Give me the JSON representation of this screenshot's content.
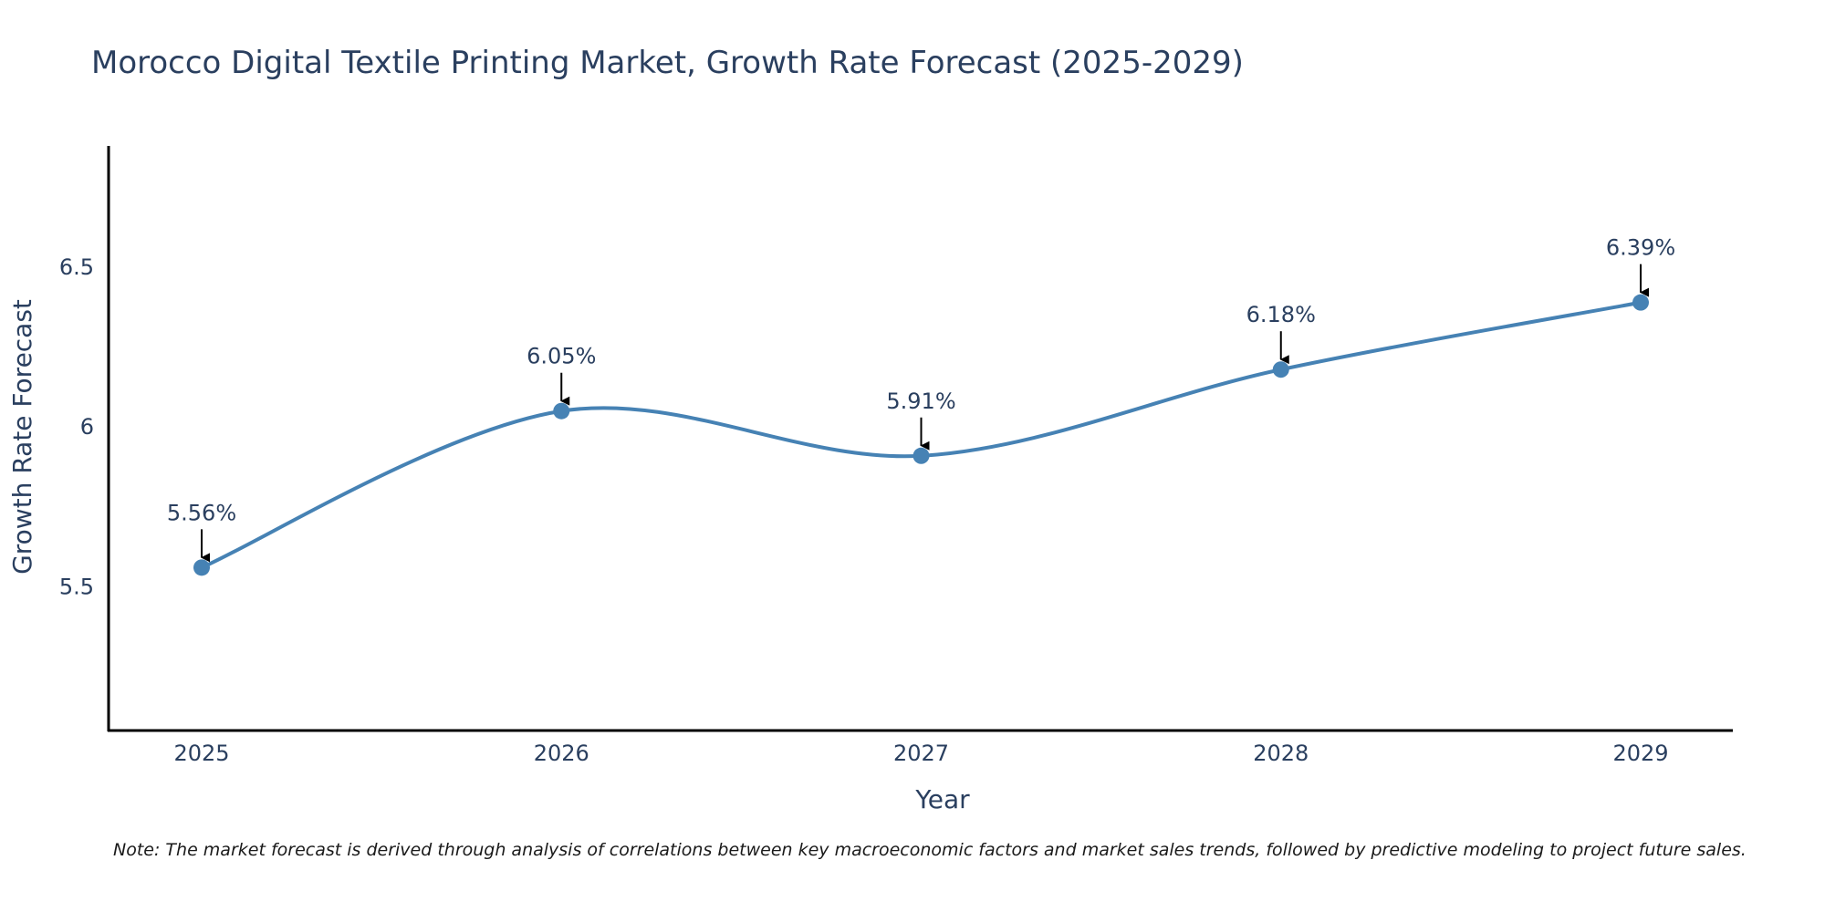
{
  "chart_data": {
    "type": "line",
    "title": "Morocco Digital Textile Printing Market, Growth Rate Forecast (2025-2029)",
    "xlabel": "Year",
    "ylabel": "Growth Rate Forecast",
    "categories": [
      "2025",
      "2026",
      "2027",
      "2028",
      "2029"
    ],
    "series": [
      {
        "name": "Growth Rate Forecast",
        "values": [
          5.56,
          6.05,
          5.91,
          6.18,
          6.39
        ],
        "color": "#4682b4"
      }
    ],
    "data_labels": [
      "5.56%",
      "6.05%",
      "5.91%",
      "6.18%",
      "6.39%"
    ],
    "ylim": [
      5.05,
      6.88
    ],
    "yticks": [
      5.5,
      6,
      6.5
    ],
    "ytick_labels": [
      "5.5",
      "6",
      "6.5"
    ],
    "grid": false,
    "line_shape": "spline",
    "axis_color": "#000000",
    "annotation_arrow_color": "#000000"
  },
  "note": "Note: The market forecast is derived through analysis of correlations between key macroeconomic factors and market sales trends, followed by predictive modeling to project future sales."
}
